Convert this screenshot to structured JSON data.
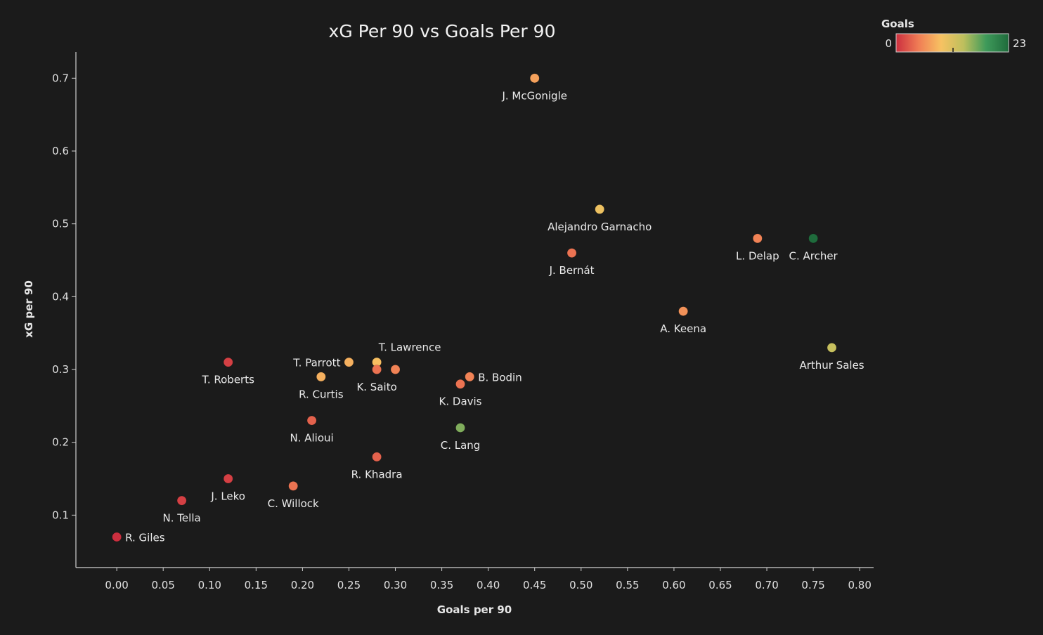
{
  "chart_data": {
    "type": "scatter",
    "title": "xG Per 90 vs Goals Per 90",
    "xlabel": "Goals per 90",
    "ylabel": "xG per 90",
    "xlim": [
      -0.044,
      0.815
    ],
    "ylim": [
      0.028,
      0.736
    ],
    "xticks": [
      "0.00",
      "0.05",
      "0.10",
      "0.15",
      "0.20",
      "0.25",
      "0.30",
      "0.35",
      "0.40",
      "0.45",
      "0.50",
      "0.55",
      "0.60",
      "0.65",
      "0.70",
      "0.75",
      "0.80"
    ],
    "yticks": [
      "0.1",
      "0.2",
      "0.3",
      "0.4",
      "0.5",
      "0.6",
      "0.7"
    ],
    "grid": false,
    "color_legend": {
      "title": "Goals",
      "min_label": "0",
      "max_label": "23",
      "min": 0,
      "max": 23,
      "stops": [
        "#cc2f3f",
        "#f07d55",
        "#f7c262",
        "#bdbf5d",
        "#3e9a5a",
        "#1f6b3c"
      ],
      "placement": "top-right"
    },
    "points": [
      {
        "name": "J. McGonigle",
        "x": 0.45,
        "y": 0.7,
        "goals": 7,
        "label_pos": "below"
      },
      {
        "name": "Alejandro Garnacho",
        "x": 0.52,
        "y": 0.52,
        "goals": 10,
        "label_pos": "below"
      },
      {
        "name": "J. Bernát",
        "x": 0.49,
        "y": 0.46,
        "goals": 4,
        "label_pos": "below"
      },
      {
        "name": "L. Delap",
        "x": 0.69,
        "y": 0.48,
        "goals": 5,
        "label_pos": "below"
      },
      {
        "name": "C. Archer",
        "x": 0.75,
        "y": 0.48,
        "goals": 23,
        "label_pos": "below"
      },
      {
        "name": "A. Keena",
        "x": 0.61,
        "y": 0.38,
        "goals": 6,
        "label_pos": "below"
      },
      {
        "name": "Arthur Sales",
        "x": 0.77,
        "y": 0.33,
        "goals": 13,
        "label_pos": "below"
      },
      {
        "name": "T. Roberts",
        "x": 0.12,
        "y": 0.31,
        "goals": 1,
        "label_pos": "below"
      },
      {
        "name": "T. Parrott",
        "x": 0.25,
        "y": 0.31,
        "goals": 8,
        "label_pos": "left"
      },
      {
        "name": "T. Lawrence",
        "x": 0.28,
        "y": 0.31,
        "goals": 9,
        "label_pos": "above-right"
      },
      {
        "name": "K. Saito",
        "x": 0.28,
        "y": 0.3,
        "goals": 4,
        "label_pos": "below"
      },
      {
        "name": "",
        "x": 0.3,
        "y": 0.3,
        "goals": 5,
        "label_pos": "none"
      },
      {
        "name": "R. Curtis",
        "x": 0.22,
        "y": 0.29,
        "goals": 8,
        "label_pos": "below"
      },
      {
        "name": "B. Bodin",
        "x": 0.38,
        "y": 0.29,
        "goals": 5,
        "label_pos": "right"
      },
      {
        "name": "K. Davis",
        "x": 0.37,
        "y": 0.28,
        "goals": 4,
        "label_pos": "below"
      },
      {
        "name": "N. Alioui",
        "x": 0.21,
        "y": 0.23,
        "goals": 3,
        "label_pos": "below"
      },
      {
        "name": "C. Lang",
        "x": 0.37,
        "y": 0.22,
        "goals": 16,
        "label_pos": "below"
      },
      {
        "name": "R. Khadra",
        "x": 0.28,
        "y": 0.18,
        "goals": 3,
        "label_pos": "below"
      },
      {
        "name": "J. Leko",
        "x": 0.12,
        "y": 0.15,
        "goals": 1,
        "label_pos": "below"
      },
      {
        "name": "C. Willock",
        "x": 0.19,
        "y": 0.14,
        "goals": 4,
        "label_pos": "below"
      },
      {
        "name": "N. Tella",
        "x": 0.07,
        "y": 0.12,
        "goals": 1,
        "label_pos": "below"
      },
      {
        "name": "R. Giles",
        "x": 0.0,
        "y": 0.07,
        "goals": 0,
        "label_pos": "right"
      }
    ]
  }
}
